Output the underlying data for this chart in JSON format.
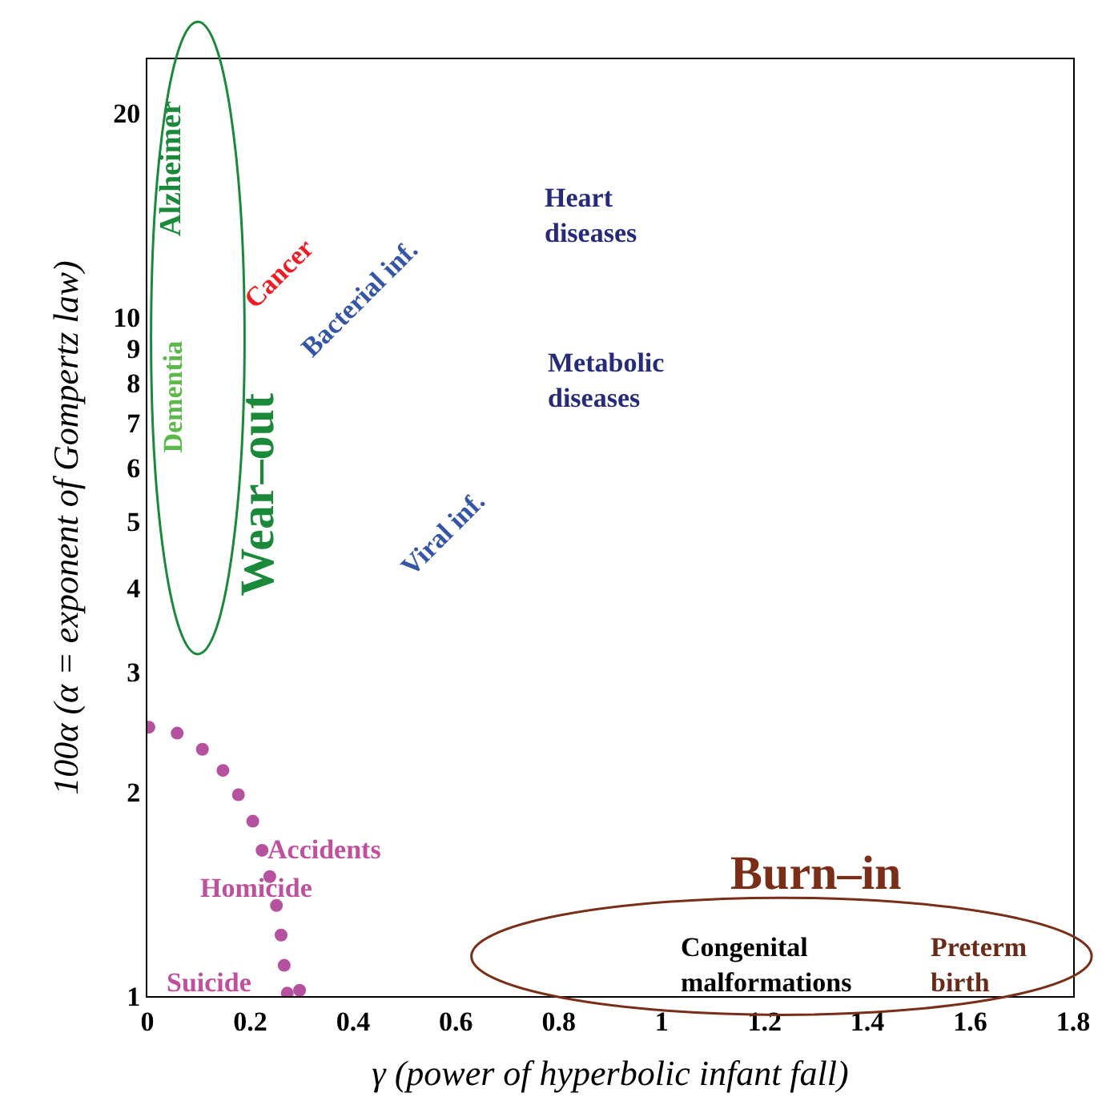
{
  "chart_data": {
    "type": "scatter",
    "xlabel": "γ (power of hyperbolic infant fall)",
    "ylabel": "100α (α = exponent of Gompertz law)",
    "x": [
      0.003,
      0.058,
      0.107,
      0.147,
      0.177,
      0.205,
      0.223,
      0.238,
      0.251,
      0.26,
      0.266,
      0.272,
      0.296
    ],
    "series": [
      {
        "color": "#b5519e",
        "values": [
          2.49,
          2.44,
          2.31,
          2.15,
          1.98,
          1.81,
          1.64,
          1.5,
          1.36,
          1.23,
          1.11,
          1.01,
          1.02
        ]
      }
    ],
    "marker": "circle",
    "log": "y",
    "xlim": [
      0,
      1.8
    ],
    "xticks": [
      0,
      0.2,
      0.4,
      0.6,
      0.8,
      1,
      1.2,
      1.4,
      1.6,
      1.8
    ],
    "ylim": [
      1,
      24
    ],
    "yticks": [
      1,
      2,
      3,
      4,
      5,
      6,
      7,
      8,
      9,
      10,
      20
    ],
    "annotations": [
      "Alzheimer",
      "Dementia",
      "Wear–out",
      "Cancer",
      "Bacterial inf.",
      "Viral inf.",
      "Heart\ndiseases",
      "Metabolic\ndiseases",
      "Accidents",
      "Homicide",
      "Suicide",
      "Burn–in",
      "Congenital\nmalformations",
      "Preterm\nbirth"
    ]
  }
}
